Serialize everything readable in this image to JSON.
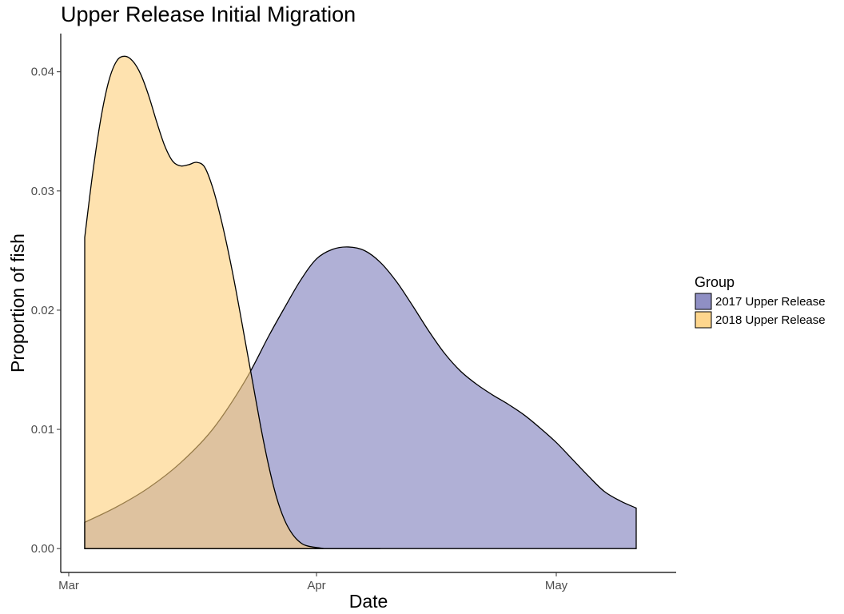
{
  "chart_data": {
    "type": "area",
    "title": "Upper Release Initial Migration",
    "xlabel": "Date",
    "ylabel": "Proportion of fish",
    "x_axis": {
      "type": "date",
      "ticks": [
        {
          "date": "2018-03-01",
          "label": "Mar"
        },
        {
          "date": "2018-04-01",
          "label": "Apr"
        },
        {
          "date": "2018-05-01",
          "label": "May"
        }
      ],
      "xlim": [
        "2018-02-28",
        "2018-05-16"
      ]
    },
    "y_axis": {
      "ticks": [
        {
          "value": 0.0,
          "label": "0.00"
        },
        {
          "value": 0.01,
          "label": "0.01"
        },
        {
          "value": 0.02,
          "label": "0.02"
        },
        {
          "value": 0.03,
          "label": "0.03"
        },
        {
          "value": 0.04,
          "label": "0.04"
        }
      ],
      "ylim": [
        -0.002,
        0.0432
      ]
    },
    "grid": false,
    "legend": {
      "title": "Group",
      "position": "right"
    },
    "series": [
      {
        "name": "2017 Upper Release",
        "color": "#7b7bba",
        "opacity": 0.6,
        "points": [
          [
            "2018-03-03",
            0.0
          ],
          [
            "2018-03-03",
            0.0022
          ],
          [
            "2018-03-07",
            0.0035
          ],
          [
            "2018-03-11",
            0.0051
          ],
          [
            "2018-03-15",
            0.0072
          ],
          [
            "2018-03-19",
            0.01
          ],
          [
            "2018-03-23",
            0.014
          ],
          [
            "2018-03-26",
            0.0178
          ],
          [
            "2018-03-28",
            0.0202
          ],
          [
            "2018-03-30",
            0.0225
          ],
          [
            "2018-04-01",
            0.0243
          ],
          [
            "2018-04-03",
            0.0251
          ],
          [
            "2018-04-05",
            0.0253
          ],
          [
            "2018-04-07",
            0.025
          ],
          [
            "2018-04-09",
            0.024
          ],
          [
            "2018-04-11",
            0.0224
          ],
          [
            "2018-04-13",
            0.0204
          ],
          [
            "2018-04-15",
            0.0183
          ],
          [
            "2018-04-17",
            0.0164
          ],
          [
            "2018-04-19",
            0.0149
          ],
          [
            "2018-04-21",
            0.0138
          ],
          [
            "2018-04-23",
            0.0129
          ],
          [
            "2018-04-25",
            0.0121
          ],
          [
            "2018-04-27",
            0.0112
          ],
          [
            "2018-04-29",
            0.0101
          ],
          [
            "2018-05-01",
            0.0089
          ],
          [
            "2018-05-03",
            0.0075
          ],
          [
            "2018-05-05",
            0.0061
          ],
          [
            "2018-05-07",
            0.0048
          ],
          [
            "2018-05-09",
            0.004
          ],
          [
            "2018-05-11",
            0.0034
          ],
          [
            "2018-05-11",
            0.0
          ]
        ]
      },
      {
        "name": "2018 Upper Release",
        "color": "#fecf79",
        "opacity": 0.6,
        "points": [
          [
            "2018-03-03",
            0.0
          ],
          [
            "2018-03-03",
            0.0261
          ],
          [
            "2018-03-04",
            0.0315
          ],
          [
            "2018-03-05",
            0.036
          ],
          [
            "2018-03-06",
            0.0392
          ],
          [
            "2018-03-07",
            0.0409
          ],
          [
            "2018-03-08",
            0.0413
          ],
          [
            "2018-03-09",
            0.0409
          ],
          [
            "2018-03-10",
            0.0398
          ],
          [
            "2018-03-11",
            0.038
          ],
          [
            "2018-03-12",
            0.0358
          ],
          [
            "2018-03-13",
            0.0338
          ],
          [
            "2018-03-14",
            0.0325
          ],
          [
            "2018-03-15",
            0.0321
          ],
          [
            "2018-03-16",
            0.0322
          ],
          [
            "2018-03-17",
            0.0324
          ],
          [
            "2018-03-18",
            0.032
          ],
          [
            "2018-03-19",
            0.0303
          ],
          [
            "2018-03-20",
            0.0278
          ],
          [
            "2018-03-21",
            0.0248
          ],
          [
            "2018-03-22",
            0.0214
          ],
          [
            "2018-03-23",
            0.0177
          ],
          [
            "2018-03-24",
            0.014
          ],
          [
            "2018-03-25",
            0.0103
          ],
          [
            "2018-03-26",
            0.007
          ],
          [
            "2018-03-27",
            0.0043
          ],
          [
            "2018-03-28",
            0.0024
          ],
          [
            "2018-03-29",
            0.0012
          ],
          [
            "2018-03-30",
            0.0005
          ],
          [
            "2018-03-31",
            0.0002
          ],
          [
            "2018-04-02",
            0.0
          ],
          [
            "2018-04-09",
            0.0
          ]
        ]
      }
    ]
  }
}
